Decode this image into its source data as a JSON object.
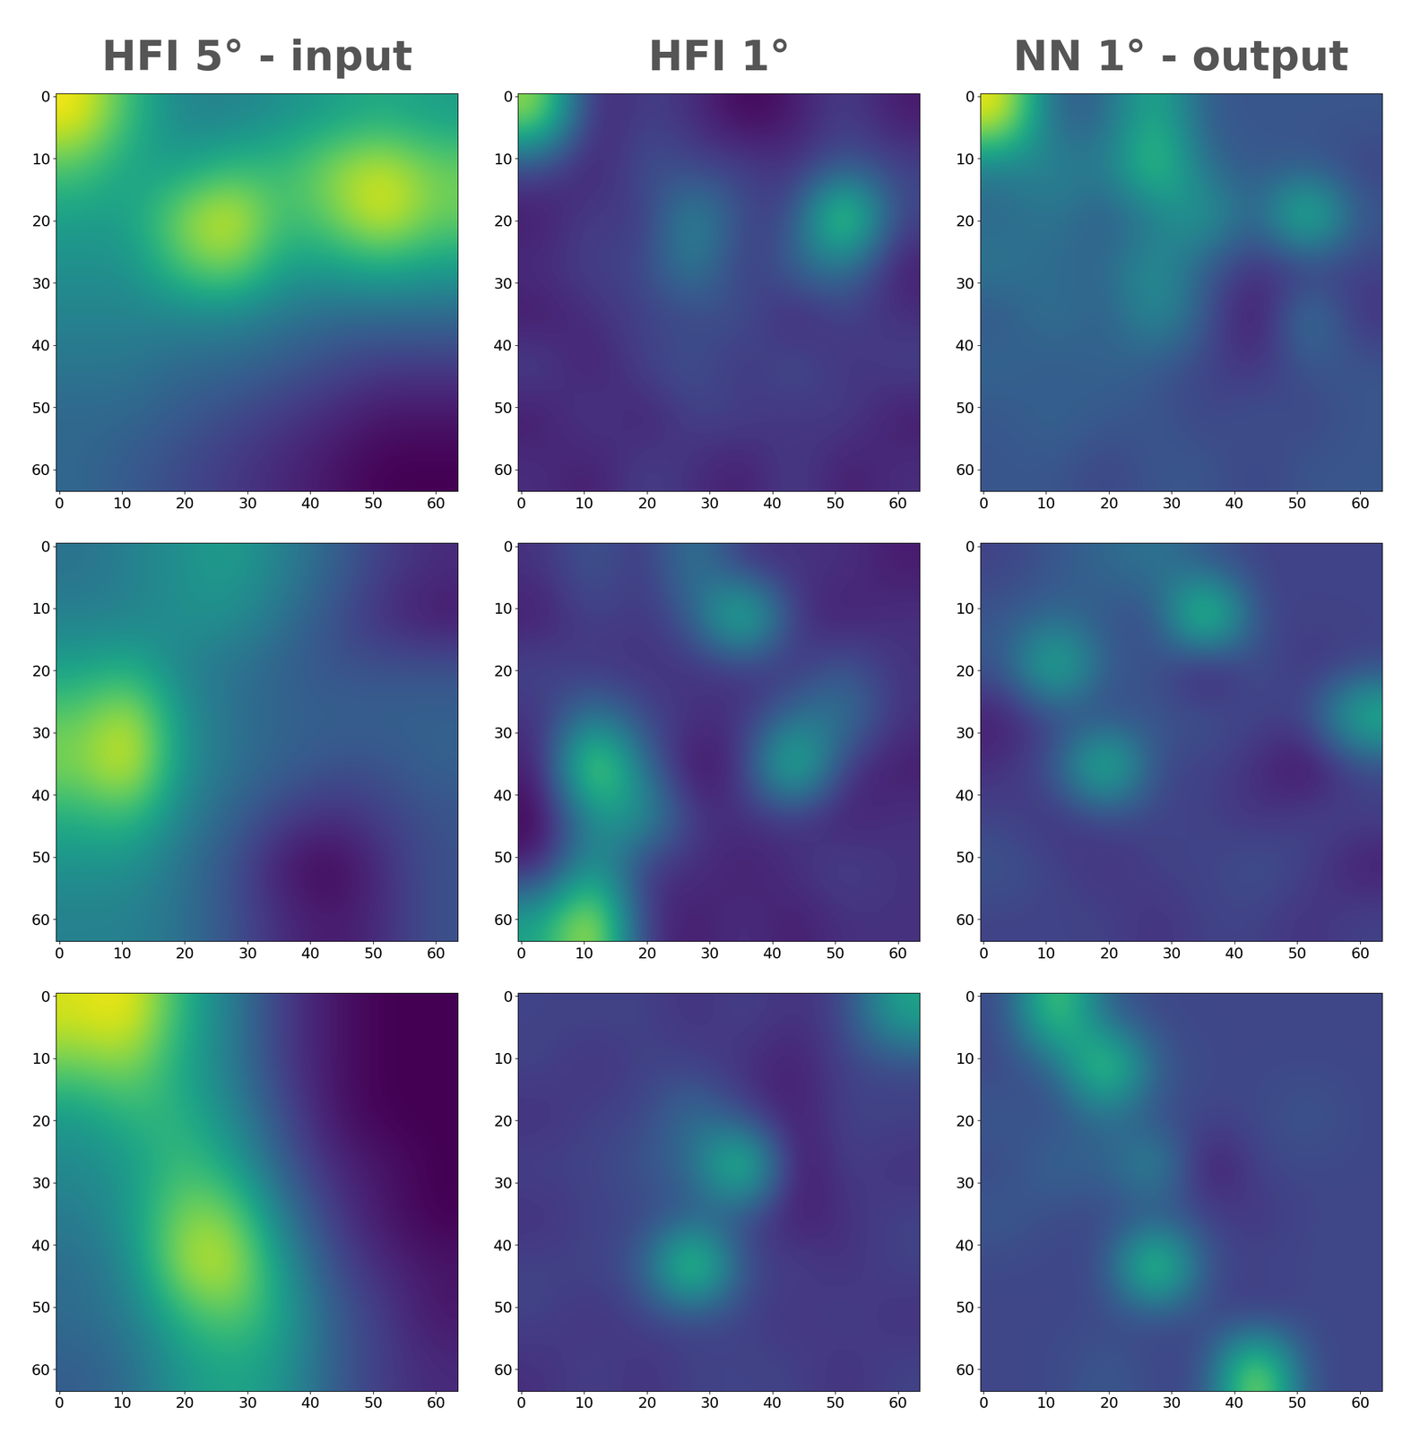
{
  "chart_data": [
    {
      "type": "heatmap",
      "title": "HFI 5° - input",
      "xlim": [
        -0.5,
        63.5
      ],
      "ylim": [
        63.5,
        -0.5
      ],
      "xticks": [
        0,
        10,
        20,
        30,
        40,
        50,
        60
      ],
      "yticks": [
        0,
        10,
        20,
        30,
        40,
        50,
        60
      ],
      "grid": false,
      "cells": [
        [
          0.9,
          0.6,
          0.4,
          0.4,
          0.45,
          0.5,
          0.55,
          0.5
        ],
        [
          0.65,
          0.5,
          0.5,
          0.6,
          0.6,
          0.75,
          0.85,
          0.7
        ],
        [
          0.5,
          0.5,
          0.75,
          0.9,
          0.6,
          0.7,
          0.9,
          0.7
        ],
        [
          0.45,
          0.45,
          0.65,
          0.75,
          0.5,
          0.5,
          0.55,
          0.5
        ],
        [
          0.4,
          0.4,
          0.4,
          0.4,
          0.35,
          0.3,
          0.3,
          0.3
        ],
        [
          0.35,
          0.35,
          0.3,
          0.3,
          0.25,
          0.2,
          0.15,
          0.15
        ],
        [
          0.3,
          0.3,
          0.25,
          0.2,
          0.15,
          0.1,
          0.05,
          0.05
        ],
        [
          0.3,
          0.25,
          0.2,
          0.15,
          0.1,
          0.05,
          0.0,
          0.0
        ]
      ]
    },
    {
      "type": "heatmap",
      "title": "HFI 1°",
      "xlim": [
        -0.5,
        63.5
      ],
      "ylim": [
        63.5,
        -0.5
      ],
      "xticks": [
        0,
        10,
        20,
        30,
        40,
        50,
        60
      ],
      "yticks": [
        0,
        10,
        20,
        30,
        40,
        50,
        60
      ],
      "grid": false,
      "cells": [
        [
          0.8,
          0.2,
          0.3,
          0.25,
          0.15,
          0.2,
          0.3,
          0.2
        ],
        [
          0.3,
          0.2,
          0.35,
          0.3,
          0.3,
          0.25,
          0.35,
          0.3
        ],
        [
          0.2,
          0.3,
          0.25,
          0.55,
          0.3,
          0.3,
          0.9,
          0.3
        ],
        [
          0.25,
          0.3,
          0.3,
          0.5,
          0.25,
          0.4,
          0.45,
          0.2
        ],
        [
          0.2,
          0.25,
          0.3,
          0.3,
          0.35,
          0.2,
          0.3,
          0.25
        ],
        [
          0.3,
          0.2,
          0.3,
          0.35,
          0.25,
          0.35,
          0.25,
          0.3
        ],
        [
          0.2,
          0.3,
          0.2,
          0.3,
          0.3,
          0.25,
          0.3,
          0.2
        ],
        [
          0.25,
          0.2,
          0.3,
          0.25,
          0.2,
          0.3,
          0.2,
          0.25
        ]
      ]
    },
    {
      "type": "heatmap",
      "title": "NN 1° - output",
      "xlim": [
        -0.5,
        63.5
      ],
      "ylim": [
        63.5,
        -0.5
      ],
      "xticks": [
        0,
        10,
        20,
        30,
        40,
        50,
        60
      ],
      "yticks": [
        0,
        10,
        20,
        30,
        40,
        50,
        60
      ],
      "grid": false,
      "cells": [
        [
          0.85,
          0.3,
          0.35,
          0.6,
          0.3,
          0.3,
          0.3,
          0.3
        ],
        [
          0.4,
          0.45,
          0.4,
          0.7,
          0.35,
          0.3,
          0.3,
          0.25
        ],
        [
          0.35,
          0.4,
          0.3,
          0.4,
          0.55,
          0.3,
          0.75,
          0.3
        ],
        [
          0.4,
          0.35,
          0.35,
          0.5,
          0.3,
          0.2,
          0.2,
          0.25
        ],
        [
          0.3,
          0.4,
          0.3,
          0.5,
          0.3,
          0.1,
          0.45,
          0.2
        ],
        [
          0.35,
          0.3,
          0.35,
          0.3,
          0.25,
          0.2,
          0.3,
          0.3
        ],
        [
          0.3,
          0.35,
          0.3,
          0.3,
          0.25,
          0.3,
          0.25,
          0.3
        ],
        [
          0.3,
          0.3,
          0.25,
          0.3,
          0.3,
          0.25,
          0.3,
          0.3
        ]
      ]
    },
    {
      "type": "heatmap",
      "xlim": [
        -0.5,
        63.5
      ],
      "ylim": [
        63.5,
        -0.5
      ],
      "xticks": [
        0,
        10,
        20,
        30,
        40,
        50,
        60
      ],
      "yticks": [
        0,
        10,
        20,
        30,
        40,
        50,
        60
      ],
      "grid": false,
      "cells": [
        [
          0.4,
          0.45,
          0.5,
          0.55,
          0.45,
          0.35,
          0.25,
          0.2
        ],
        [
          0.45,
          0.45,
          0.5,
          0.5,
          0.4,
          0.3,
          0.2,
          0.15
        ],
        [
          0.55,
          0.6,
          0.45,
          0.4,
          0.35,
          0.3,
          0.3,
          0.3
        ],
        [
          0.7,
          0.85,
          0.5,
          0.4,
          0.35,
          0.35,
          0.35,
          0.35
        ],
        [
          0.75,
          0.9,
          0.5,
          0.4,
          0.35,
          0.3,
          0.3,
          0.35
        ],
        [
          0.6,
          0.65,
          0.45,
          0.35,
          0.25,
          0.2,
          0.25,
          0.3
        ],
        [
          0.5,
          0.5,
          0.4,
          0.3,
          0.15,
          0.1,
          0.2,
          0.3
        ],
        [
          0.45,
          0.45,
          0.4,
          0.3,
          0.2,
          0.15,
          0.2,
          0.3
        ]
      ]
    },
    {
      "type": "heatmap",
      "xlim": [
        -0.5,
        63.5
      ],
      "ylim": [
        63.5,
        -0.5
      ],
      "xticks": [
        0,
        10,
        20,
        30,
        40,
        50,
        60
      ],
      "yticks": [
        0,
        10,
        20,
        30,
        40,
        50,
        60
      ],
      "grid": false,
      "cells": [
        [
          0.3,
          0.4,
          0.3,
          0.5,
          0.3,
          0.3,
          0.3,
          0.25
        ],
        [
          0.25,
          0.35,
          0.3,
          0.4,
          0.8,
          0.3,
          0.25,
          0.3
        ],
        [
          0.35,
          0.3,
          0.3,
          0.3,
          0.3,
          0.3,
          0.4,
          0.3
        ],
        [
          0.3,
          0.5,
          0.35,
          0.3,
          0.3,
          0.45,
          0.5,
          0.3
        ],
        [
          0.25,
          0.9,
          0.45,
          0.2,
          0.3,
          0.8,
          0.3,
          0.25
        ],
        [
          0.2,
          0.55,
          0.6,
          0.3,
          0.3,
          0.3,
          0.25,
          0.3
        ],
        [
          0.25,
          0.6,
          0.3,
          0.3,
          0.25,
          0.3,
          0.35,
          0.3
        ],
        [
          0.6,
          0.9,
          0.3,
          0.25,
          0.3,
          0.25,
          0.3,
          0.3
        ]
      ]
    },
    {
      "type": "heatmap",
      "xlim": [
        -0.5,
        63.5
      ],
      "ylim": [
        63.5,
        -0.5
      ],
      "xticks": [
        0,
        10,
        20,
        30,
        40,
        50,
        60
      ],
      "yticks": [
        0,
        10,
        20,
        30,
        40,
        50,
        60
      ],
      "grid": false,
      "cells": [
        [
          0.3,
          0.35,
          0.4,
          0.45,
          0.35,
          0.3,
          0.3,
          0.3
        ],
        [
          0.35,
          0.4,
          0.35,
          0.3,
          0.9,
          0.3,
          0.3,
          0.3
        ],
        [
          0.35,
          0.75,
          0.35,
          0.35,
          0.15,
          0.35,
          0.25,
          0.3
        ],
        [
          0.2,
          0.3,
          0.3,
          0.35,
          0.35,
          0.3,
          0.3,
          0.7
        ],
        [
          0.25,
          0.35,
          0.8,
          0.3,
          0.3,
          0.25,
          0.15,
          0.3
        ],
        [
          0.3,
          0.25,
          0.3,
          0.3,
          0.3,
          0.25,
          0.3,
          0.3
        ],
        [
          0.35,
          0.3,
          0.25,
          0.3,
          0.3,
          0.35,
          0.3,
          0.2
        ],
        [
          0.3,
          0.3,
          0.3,
          0.25,
          0.3,
          0.3,
          0.25,
          0.3
        ]
      ]
    },
    {
      "type": "heatmap",
      "xlim": [
        -0.5,
        63.5
      ],
      "ylim": [
        63.5,
        -0.5
      ],
      "xticks": [
        0,
        10,
        20,
        30,
        40,
        50,
        60
      ],
      "yticks": [
        0,
        10,
        20,
        30,
        40,
        50,
        60
      ],
      "grid": false,
      "cells": [
        [
          0.85,
          0.9,
          0.6,
          0.4,
          0.2,
          0.1,
          0.05,
          0.05
        ],
        [
          0.7,
          0.75,
          0.55,
          0.4,
          0.2,
          0.1,
          0.05,
          0.05
        ],
        [
          0.5,
          0.6,
          0.6,
          0.45,
          0.25,
          0.1,
          0.05,
          0.05
        ],
        [
          0.45,
          0.5,
          0.65,
          0.55,
          0.3,
          0.15,
          0.1,
          0.05
        ],
        [
          0.4,
          0.5,
          0.75,
          0.75,
          0.4,
          0.2,
          0.1,
          0.05
        ],
        [
          0.35,
          0.45,
          0.8,
          0.85,
          0.5,
          0.25,
          0.15,
          0.1
        ],
        [
          0.35,
          0.4,
          0.6,
          0.7,
          0.55,
          0.3,
          0.2,
          0.1
        ],
        [
          0.3,
          0.35,
          0.5,
          0.55,
          0.5,
          0.3,
          0.2,
          0.15
        ]
      ]
    },
    {
      "type": "heatmap",
      "xlim": [
        -0.5,
        63.5
      ],
      "ylim": [
        63.5,
        -0.5
      ],
      "xticks": [
        0,
        10,
        20,
        30,
        40,
        50,
        60
      ],
      "yticks": [
        0,
        10,
        20,
        30,
        40,
        50,
        60
      ],
      "grid": false,
      "cells": [
        [
          0.3,
          0.3,
          0.3,
          0.25,
          0.3,
          0.25,
          0.3,
          0.6
        ],
        [
          0.3,
          0.25,
          0.3,
          0.3,
          0.25,
          0.2,
          0.3,
          0.3
        ],
        [
          0.25,
          0.3,
          0.3,
          0.45,
          0.3,
          0.2,
          0.3,
          0.3
        ],
        [
          0.3,
          0.3,
          0.35,
          0.4,
          0.85,
          0.15,
          0.3,
          0.25
        ],
        [
          0.25,
          0.3,
          0.3,
          0.35,
          0.3,
          0.2,
          0.25,
          0.3
        ],
        [
          0.3,
          0.3,
          0.35,
          0.9,
          0.3,
          0.3,
          0.25,
          0.3
        ],
        [
          0.3,
          0.25,
          0.3,
          0.3,
          0.3,
          0.25,
          0.3,
          0.25
        ],
        [
          0.25,
          0.3,
          0.25,
          0.3,
          0.3,
          0.3,
          0.25,
          0.3
        ]
      ]
    },
    {
      "type": "heatmap",
      "xlim": [
        -0.5,
        63.5
      ],
      "ylim": [
        63.5,
        -0.5
      ],
      "xticks": [
        0,
        10,
        20,
        30,
        40,
        50,
        60
      ],
      "yticks": [
        0,
        10,
        20,
        30,
        40,
        50,
        60
      ],
      "grid": false,
      "cells": [
        [
          0.3,
          0.75,
          0.35,
          0.3,
          0.3,
          0.3,
          0.3,
          0.3
        ],
        [
          0.3,
          0.35,
          0.8,
          0.35,
          0.3,
          0.3,
          0.3,
          0.3
        ],
        [
          0.35,
          0.3,
          0.4,
          0.3,
          0.3,
          0.3,
          0.35,
          0.3
        ],
        [
          0.3,
          0.4,
          0.35,
          0.55,
          0.15,
          0.3,
          0.3,
          0.3
        ],
        [
          0.35,
          0.3,
          0.3,
          0.3,
          0.3,
          0.25,
          0.3,
          0.3
        ],
        [
          0.3,
          0.3,
          0.3,
          0.85,
          0.3,
          0.3,
          0.3,
          0.3
        ],
        [
          0.3,
          0.3,
          0.3,
          0.3,
          0.3,
          0.25,
          0.3,
          0.3
        ],
        [
          0.3,
          0.3,
          0.35,
          0.3,
          0.3,
          0.85,
          0.3,
          0.3
        ]
      ]
    }
  ]
}
